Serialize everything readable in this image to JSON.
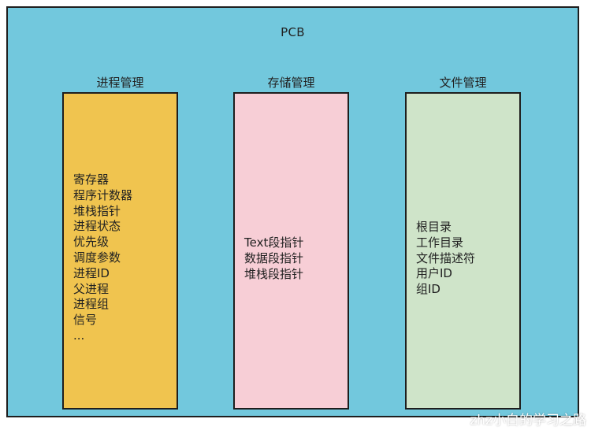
{
  "diagram": {
    "title": "PCB",
    "columns": [
      {
        "title": "进程管理",
        "items": [
          "寄存器",
          "程序计数器",
          "堆栈指针",
          "进程状态",
          "优先级",
          "调度参数",
          "进程ID",
          "父进程",
          "进程组",
          "信号",
          "..."
        ]
      },
      {
        "title": "存储管理",
        "items": [
          "Text段指针",
          "数据段指针",
          "堆栈段指针"
        ]
      },
      {
        "title": "文件管理",
        "items": [
          "根目录",
          "工作目录",
          "文件描述符",
          "用户ID",
          "组ID"
        ]
      }
    ]
  },
  "watermark": "zhz小白的学习之路",
  "colors": {
    "background": "#72c8dd",
    "process_box": "#f0c44f",
    "storage_box": "#f7ced6",
    "file_box": "#cfe4c9",
    "border": "#1e1e1e"
  }
}
